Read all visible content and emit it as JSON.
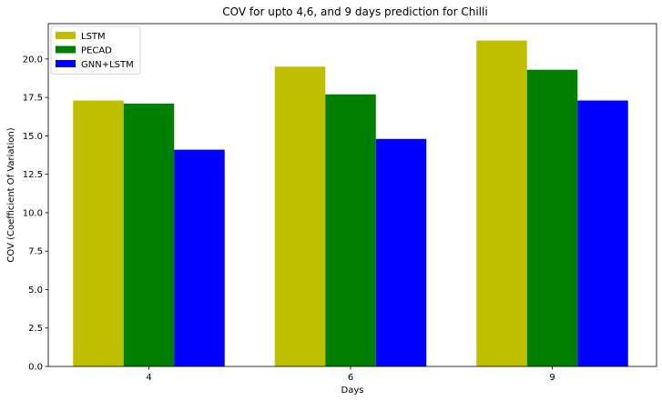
{
  "chart_data": {
    "type": "bar",
    "title": "COV for upto 4,6, and 9 days prediction for Chilli",
    "xlabel": "Days",
    "ylabel": "COV (Coefficient Of Variation)",
    "categories": [
      "4",
      "6",
      "9"
    ],
    "ylim": [
      0,
      22.3
    ],
    "yticks": [
      "0.0",
      "2.5",
      "5.0",
      "7.5",
      "10.0",
      "12.5",
      "15.0",
      "17.5",
      "20.0"
    ],
    "grid": false,
    "legend_position": "top-left",
    "series": [
      {
        "name": "LSTM",
        "color": "#bfbf00",
        "values": [
          17.3,
          19.5,
          21.2
        ]
      },
      {
        "name": "PECAD",
        "color": "#008000",
        "values": [
          17.1,
          17.7,
          19.3
        ]
      },
      {
        "name": "GNN+LSTM",
        "color": "#0000ff",
        "values": [
          14.1,
          14.8,
          17.3
        ]
      }
    ]
  }
}
